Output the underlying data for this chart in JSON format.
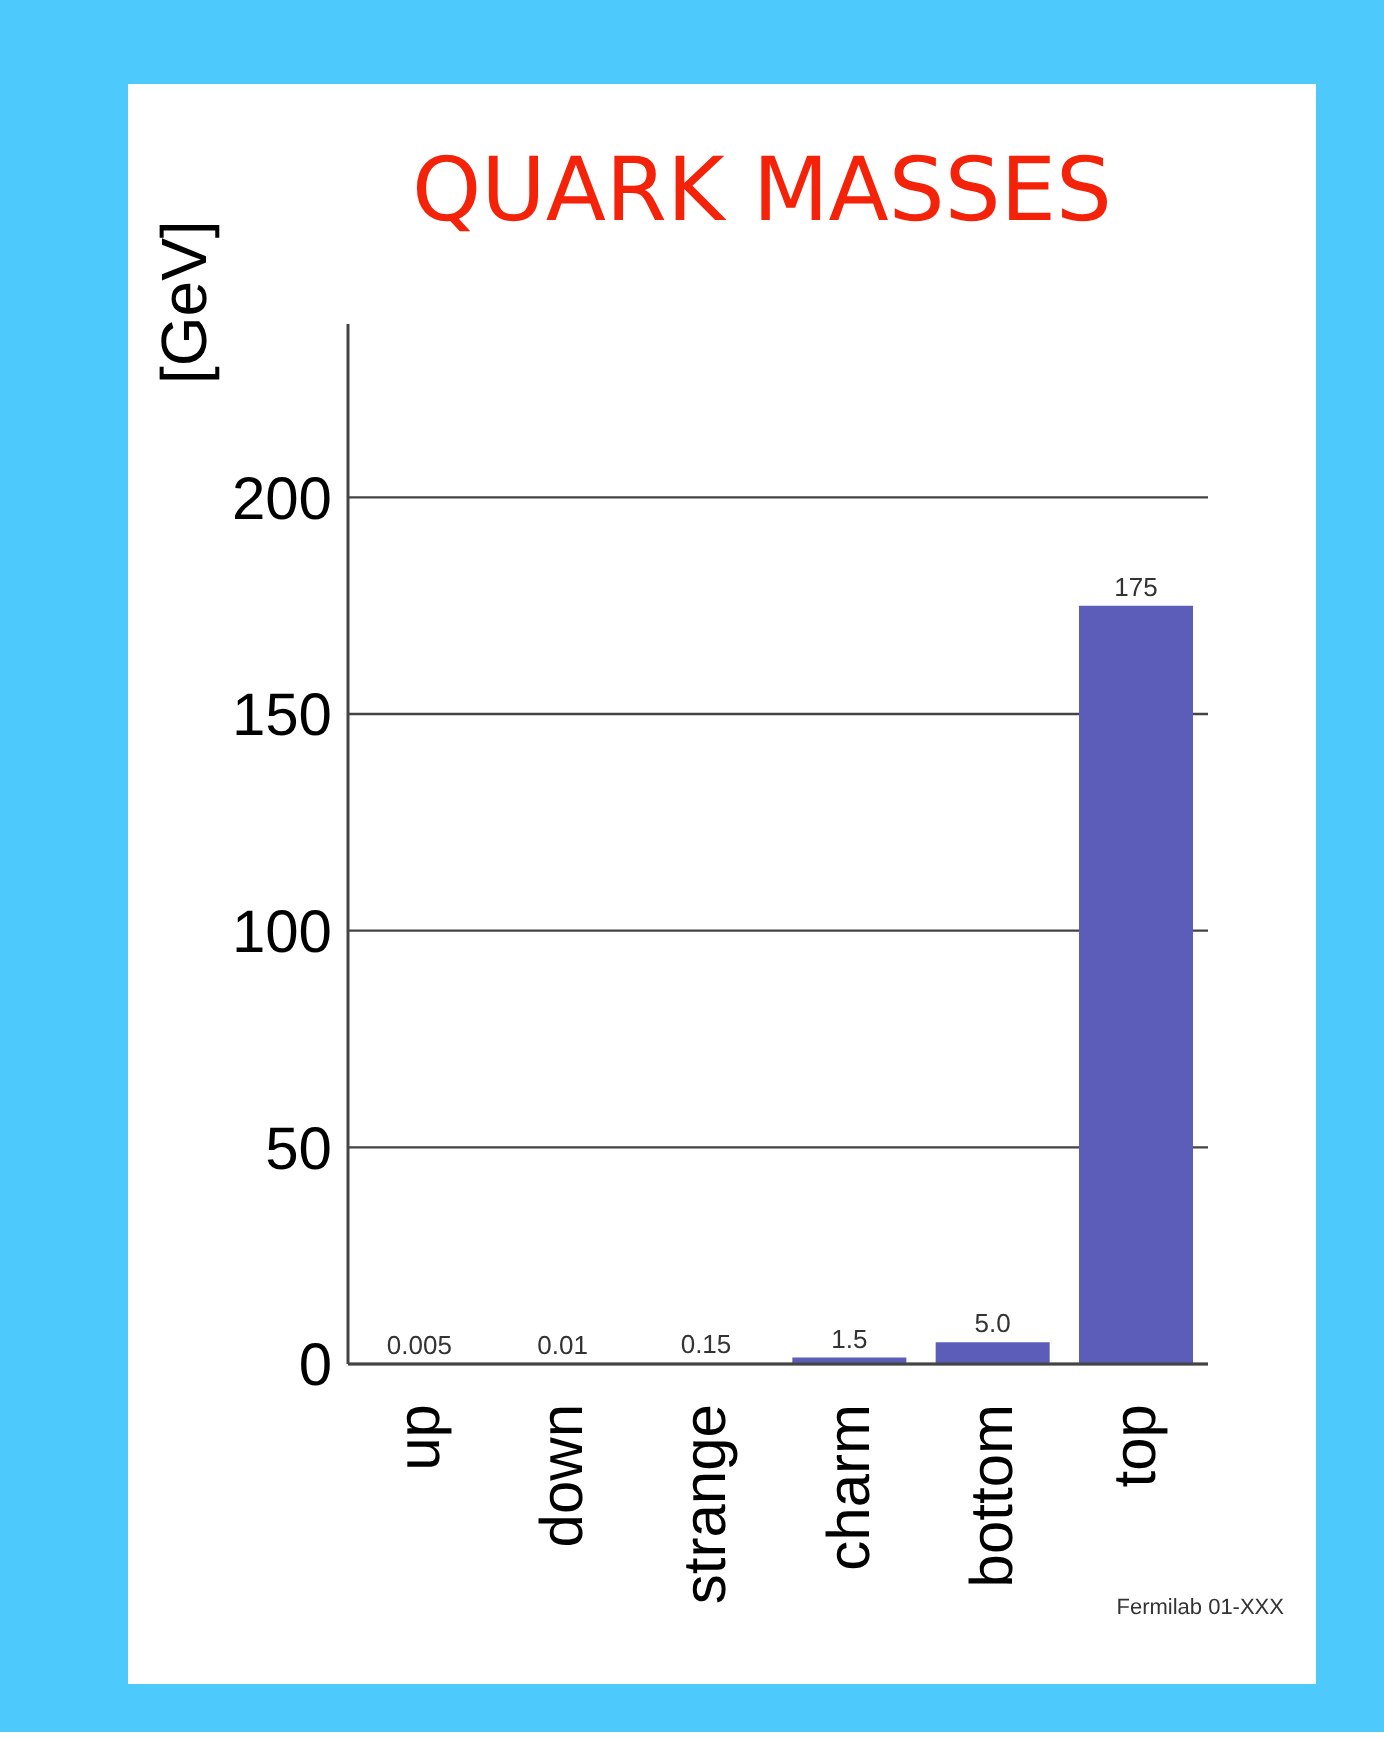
{
  "chart_data": {
    "type": "bar",
    "title": "QUARK MASSES",
    "ylabel": "[GeV]",
    "categories": [
      "up",
      "down",
      "strange",
      "charm",
      "bottom",
      "top"
    ],
    "values": [
      0.005,
      0.01,
      0.15,
      1.5,
      5.0,
      175
    ],
    "value_labels": [
      "0.005",
      "0.01",
      "0.15",
      "1.5",
      "5.0",
      "175"
    ],
    "color": "#5b5db8",
    "ylim": [
      0,
      240
    ],
    "yticks": [
      0,
      50,
      100,
      150,
      200
    ],
    "grid": "y",
    "annotations": [
      "Fermilab 01-XXX"
    ]
  }
}
